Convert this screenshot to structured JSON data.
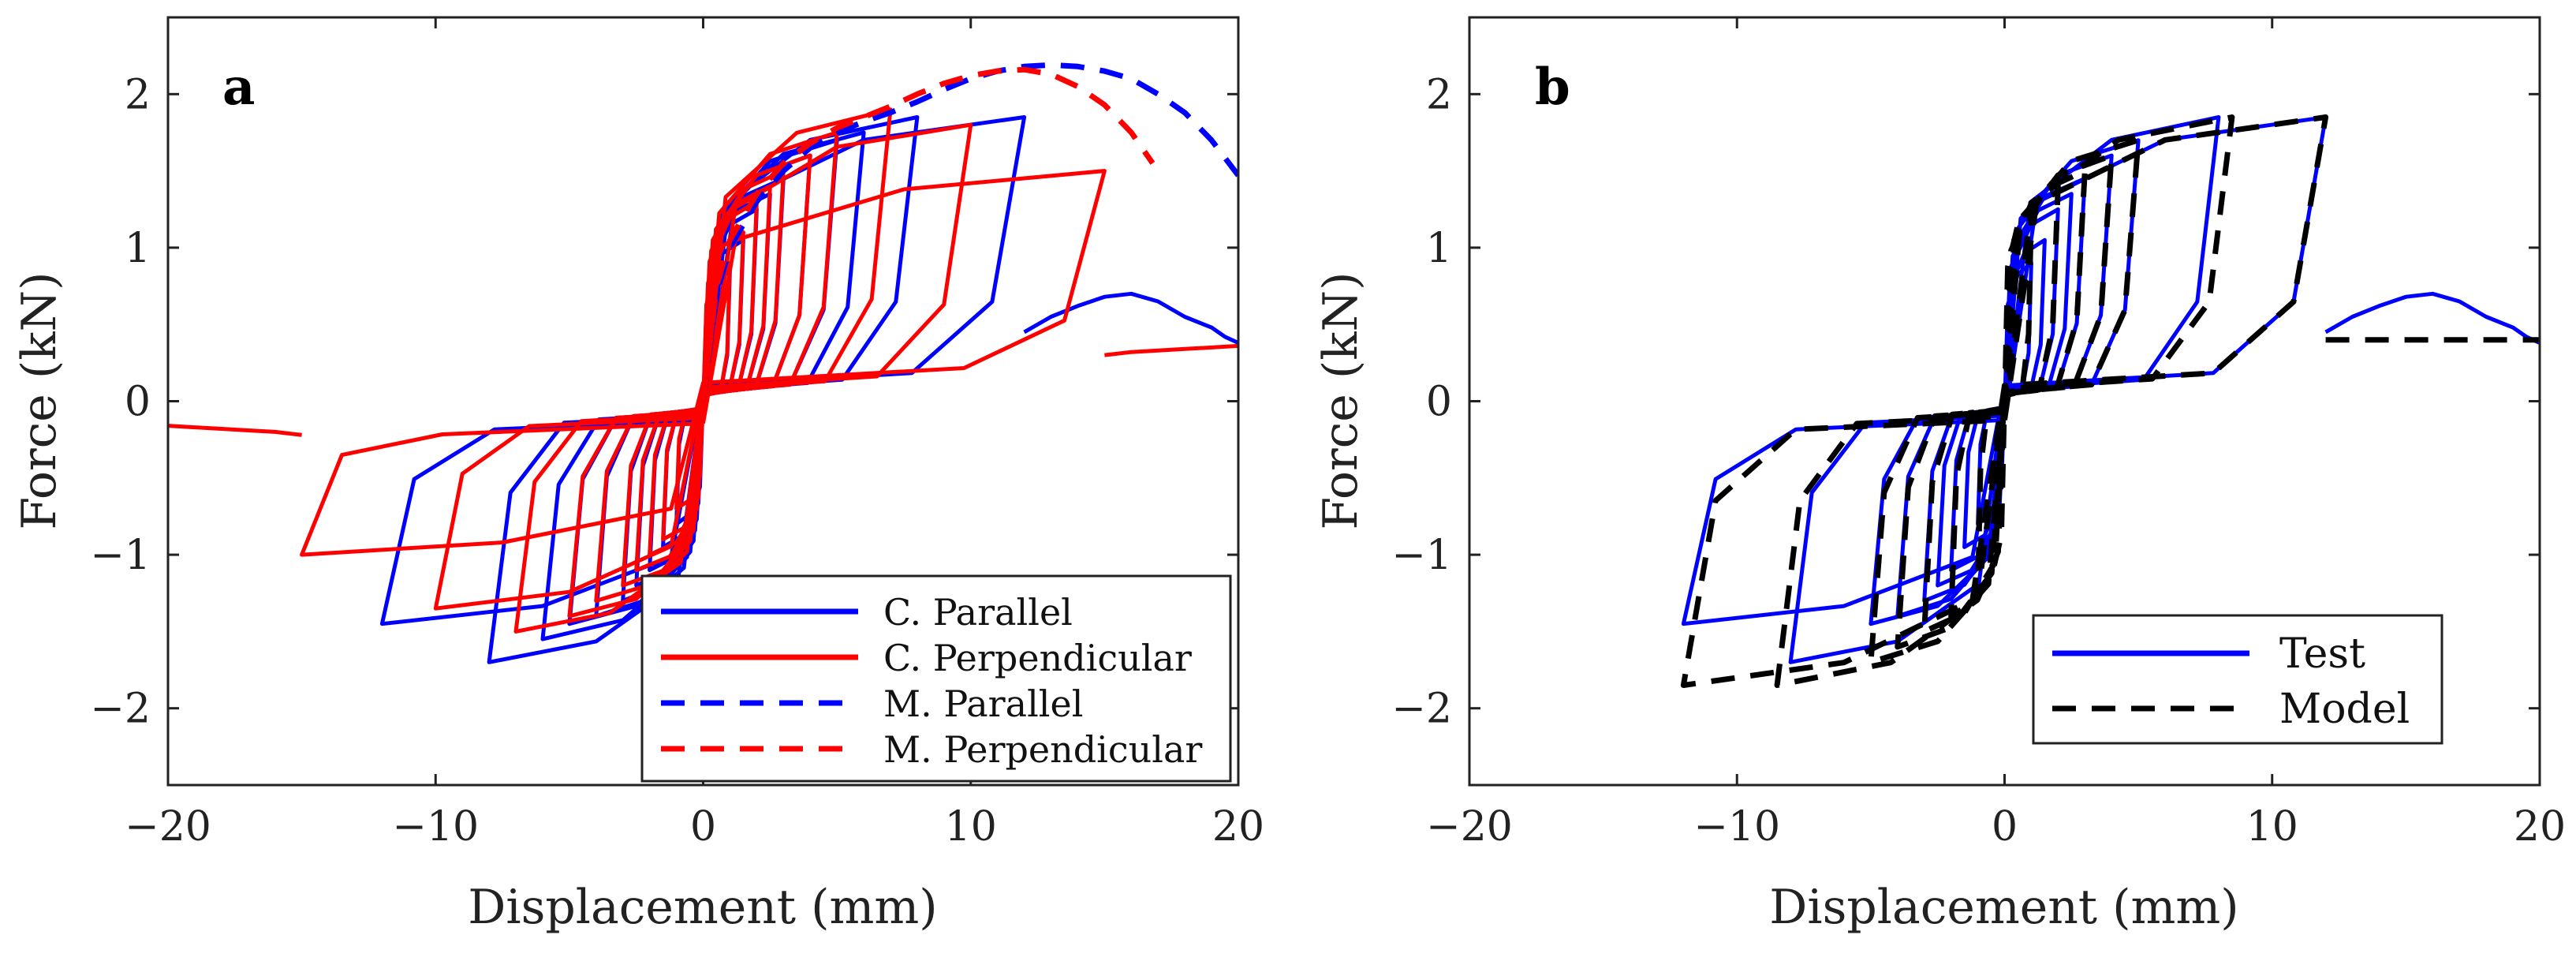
{
  "chart_data": [
    {
      "type": "line",
      "panel_label": "a",
      "xlabel": "Displacement (mm)",
      "ylabel": "Force (kN)",
      "xlim": [
        -20,
        20
      ],
      "ylim": [
        -2.5,
        2.5
      ],
      "xticks": [
        -20,
        -10,
        0,
        10,
        20
      ],
      "yticks": [
        -2,
        -1,
        0,
        1,
        2
      ],
      "grid": false,
      "legend_position": "bottom-right",
      "series": [
        {
          "name": "C. Parallel",
          "color": "#0000ff",
          "dash": "solid",
          "kind": "hysteresis",
          "amplitudes": [
            1,
            1.5,
            2,
            2.5,
            3,
            4,
            5,
            6,
            8,
            12
          ],
          "peaks_pos": [
            0.85,
            1.05,
            1.25,
            1.35,
            1.45,
            1.6,
            1.7,
            1.75,
            1.85,
            1.85
          ],
          "peaks_neg": [
            -0.8,
            -0.95,
            -1.1,
            -1.2,
            -1.3,
            -1.4,
            -1.45,
            -1.55,
            -1.7,
            -1.45
          ],
          "tail_x": [
            12,
            13,
            14,
            15,
            16,
            17,
            18,
            19,
            19.5,
            20
          ],
          "tail_y": [
            0.45,
            0.55,
            0.62,
            0.68,
            0.7,
            0.65,
            0.55,
            0.48,
            0.42,
            0.38
          ]
        },
        {
          "name": "C. Perpendicular",
          "color": "#ff0000",
          "dash": "solid",
          "kind": "hysteresis",
          "amplitudes": [
            1,
            1.5,
            2,
            2.5,
            3,
            4,
            5,
            7,
            10,
            15
          ],
          "peaks_pos": [
            0.9,
            1.1,
            1.3,
            1.4,
            1.5,
            1.6,
            1.75,
            1.9,
            1.8,
            1.5
          ],
          "peaks_neg": [
            -0.7,
            -0.9,
            -1.0,
            -1.1,
            -1.2,
            -1.3,
            -1.4,
            -1.5,
            -1.35,
            -1.0
          ],
          "tail_x": [
            15,
            16,
            17,
            18,
            19,
            20
          ],
          "tail_y": [
            0.3,
            0.32,
            0.33,
            0.34,
            0.35,
            0.36
          ],
          "tail_neg_x": [
            -15,
            -16,
            -17,
            -18,
            -19,
            -20
          ],
          "tail_neg_y": [
            -0.22,
            -0.2,
            -0.19,
            -0.18,
            -0.17,
            -0.16
          ]
        },
        {
          "name": "M. Parallel",
          "color": "#0000ff",
          "dash": "dashed",
          "kind": "backbone",
          "x": [
            0,
            0.5,
            1,
            2,
            3,
            4,
            5,
            6,
            7,
            8,
            9,
            10,
            11,
            12,
            13,
            14,
            15,
            16,
            17,
            18,
            19,
            20
          ],
          "y": [
            0,
            0.7,
            1.0,
            1.3,
            1.5,
            1.65,
            1.75,
            1.82,
            1.88,
            1.95,
            2.03,
            2.1,
            2.15,
            2.18,
            2.19,
            2.18,
            2.15,
            2.1,
            2.0,
            1.88,
            1.7,
            1.47
          ]
        },
        {
          "name": "M. Perpendicular",
          "color": "#ff0000",
          "dash": "dashed",
          "kind": "backbone",
          "x": [
            0,
            0.5,
            1,
            2,
            3,
            4,
            5,
            6,
            7,
            8,
            9,
            10,
            11,
            12,
            13,
            14,
            15,
            16,
            16.8
          ],
          "y": [
            0,
            0.75,
            1.05,
            1.35,
            1.55,
            1.68,
            1.78,
            1.85,
            1.92,
            2.0,
            2.07,
            2.12,
            2.15,
            2.16,
            2.13,
            2.05,
            1.93,
            1.75,
            1.55
          ]
        }
      ]
    },
    {
      "type": "line",
      "panel_label": "b",
      "xlabel": "Displacement (mm)",
      "ylabel": "Force (kN)",
      "xlim": [
        -20,
        20
      ],
      "ylim": [
        -2.5,
        2.5
      ],
      "xticks": [
        -20,
        -10,
        0,
        10,
        20
      ],
      "yticks": [
        -2,
        -1,
        0,
        1,
        2
      ],
      "grid": false,
      "legend_position": "bottom-right",
      "series": [
        {
          "name": "Test",
          "color": "#0000ff",
          "dash": "solid",
          "kind": "hysteresis",
          "amplitudes": [
            1,
            1.5,
            2,
            2.5,
            3,
            4,
            5,
            8,
            12
          ],
          "peaks_pos": [
            0.9,
            1.05,
            1.25,
            1.35,
            1.45,
            1.6,
            1.7,
            1.85,
            1.85
          ],
          "peaks_neg": [
            -0.8,
            -0.95,
            -1.1,
            -1.2,
            -1.3,
            -1.4,
            -1.45,
            -1.7,
            -1.45
          ],
          "tail_x": [
            12,
            13,
            14,
            15,
            16,
            17,
            18,
            19,
            19.5,
            20
          ],
          "tail_y": [
            0.45,
            0.55,
            0.62,
            0.68,
            0.7,
            0.65,
            0.55,
            0.48,
            0.42,
            0.38
          ]
        },
        {
          "name": "Model",
          "color": "#000000",
          "dash": "dashed",
          "kind": "hysteresis",
          "amplitudes": [
            1,
            2,
            3,
            4,
            5,
            8.5,
            12
          ],
          "peaks_pos": [
            1.25,
            1.4,
            1.5,
            1.6,
            1.7,
            1.85,
            1.85
          ],
          "peaks_neg": [
            -1.25,
            -1.4,
            -1.5,
            -1.6,
            -1.7,
            -1.85,
            -1.85
          ],
          "tail_x": [
            12,
            14,
            16,
            18,
            20
          ],
          "tail_y": [
            0.4,
            0.4,
            0.4,
            0.4,
            0.4
          ]
        }
      ]
    }
  ]
}
